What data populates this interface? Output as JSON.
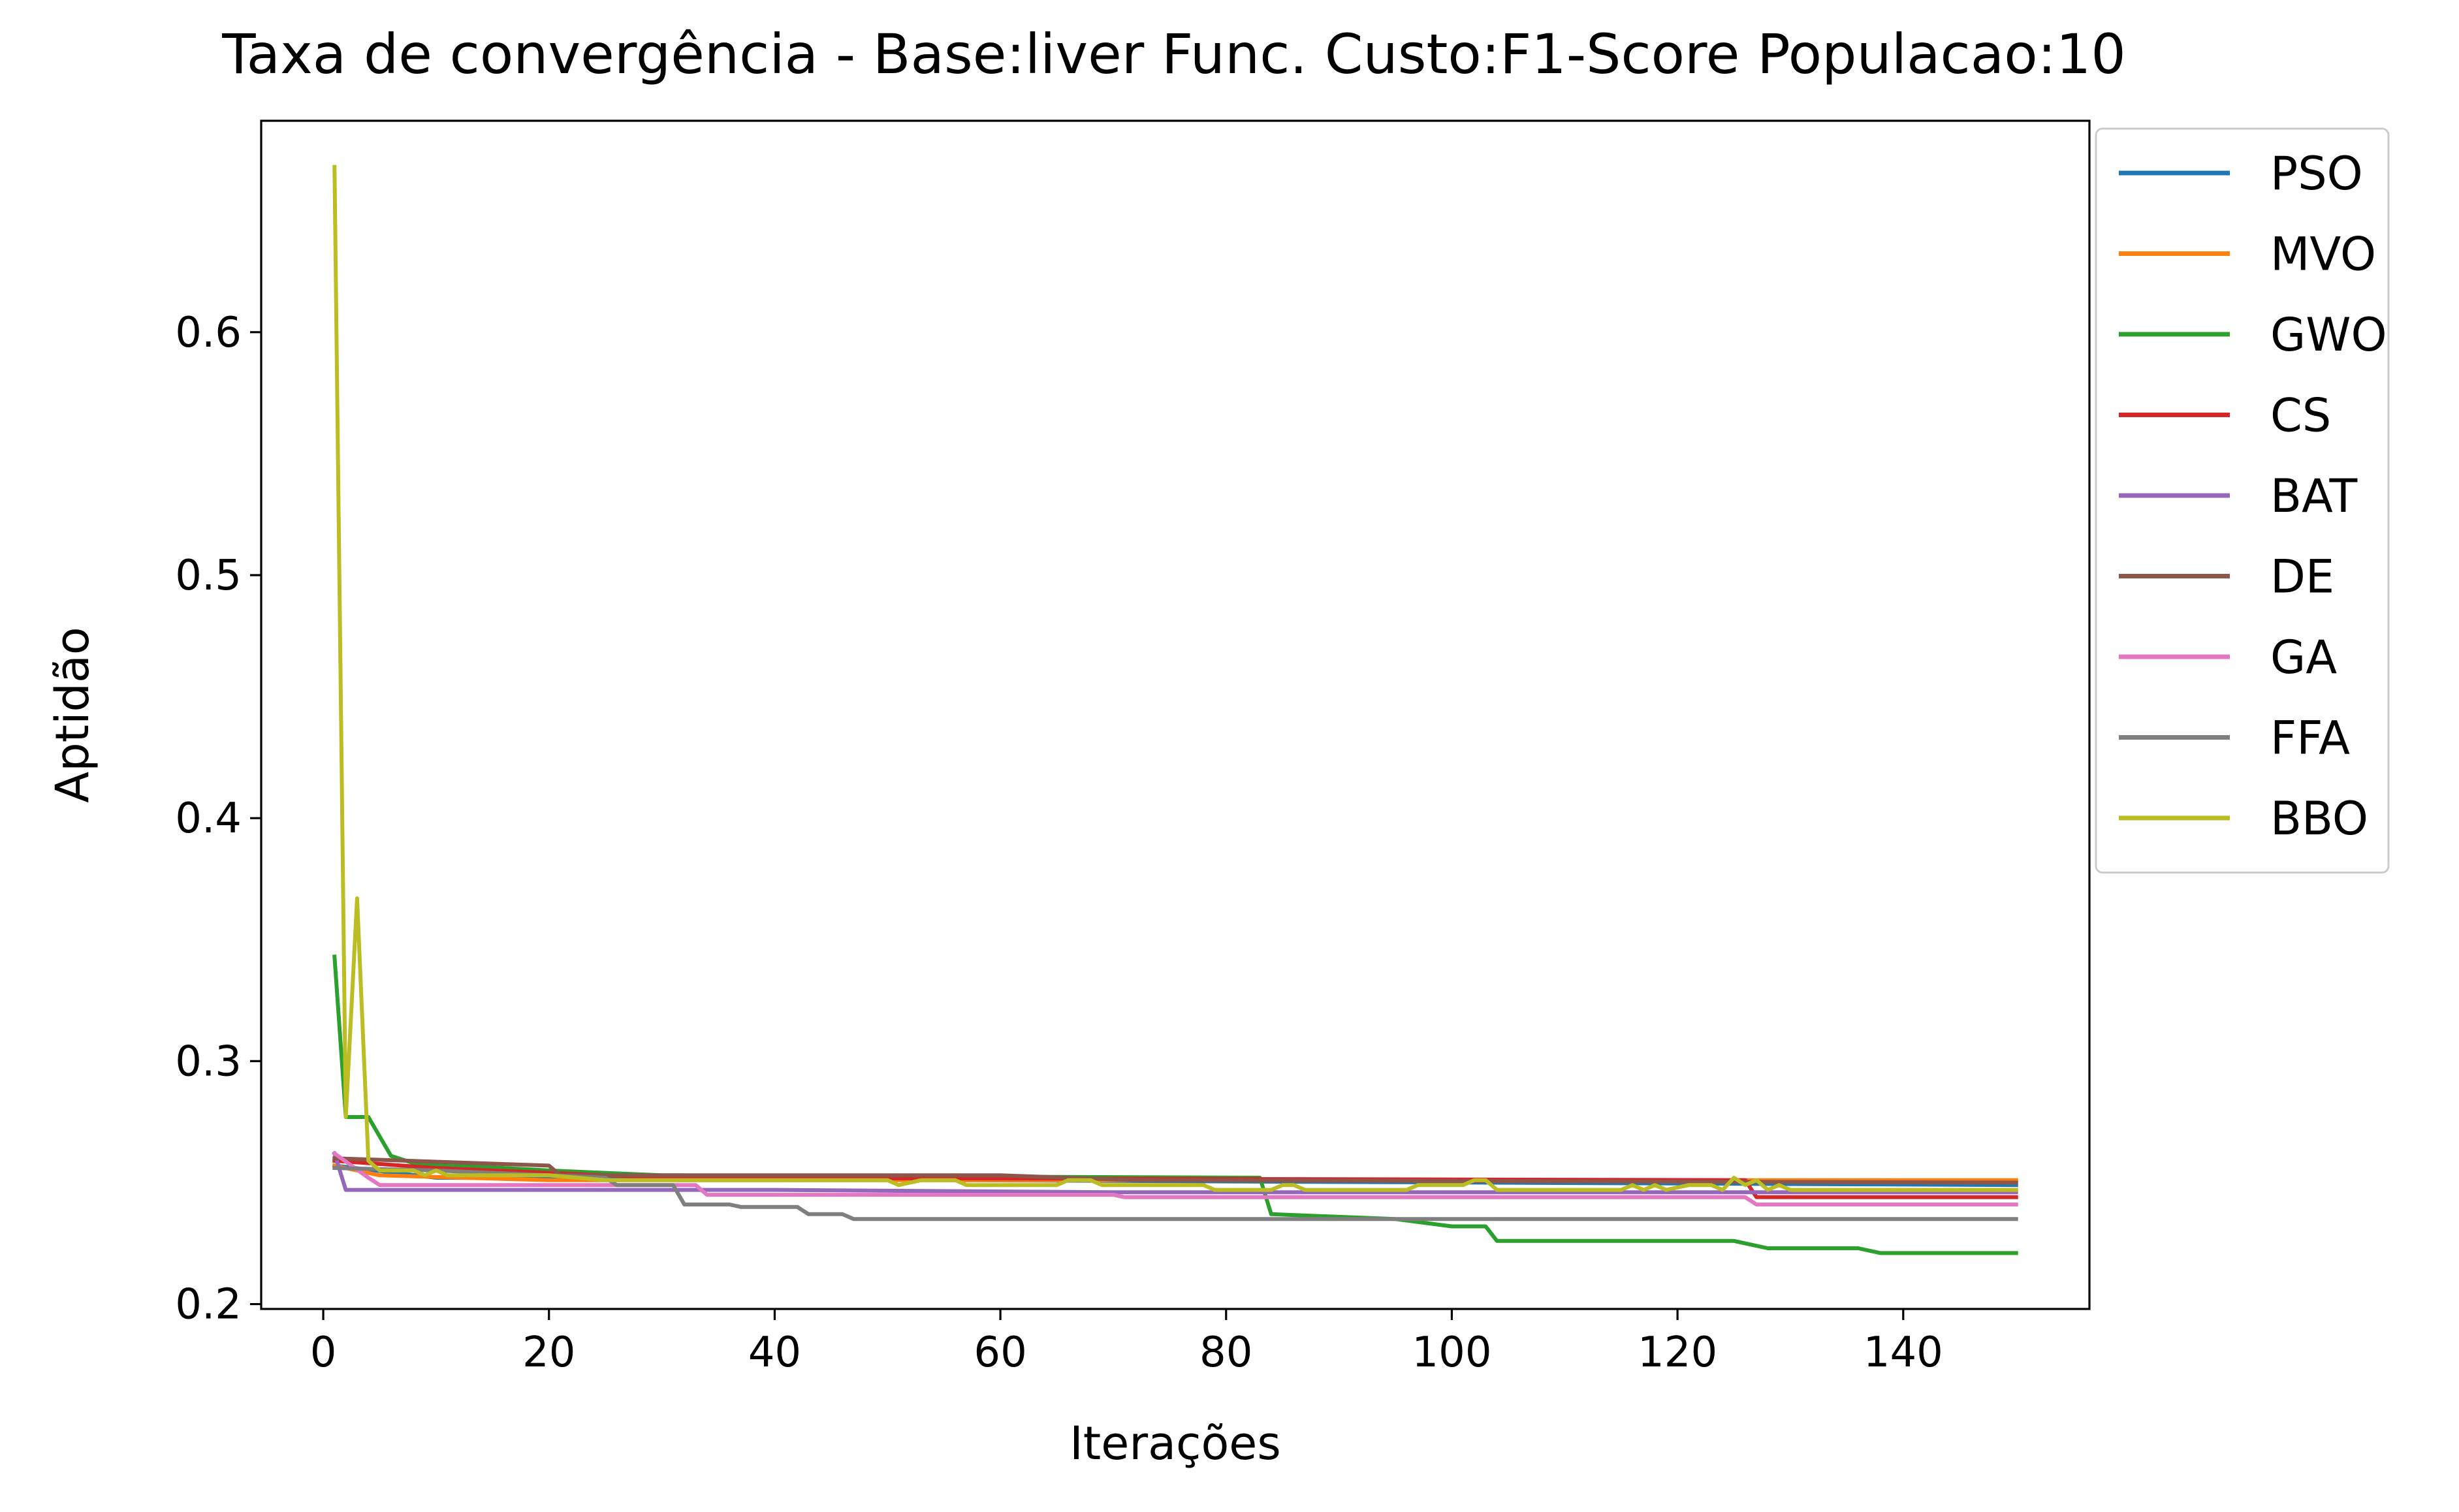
{
  "chart_data": {
    "type": "line",
    "title": "Taxa de convergência - Base:liver Func. Custo:F1-Score Populacao:10",
    "xlabel": "Iterações",
    "ylabel": "Aptidão",
    "xlim": [
      -5.5,
      156.5
    ],
    "ylim": [
      0.198,
      0.687
    ],
    "xticks": [
      0,
      20,
      40,
      60,
      80,
      100,
      120,
      140
    ],
    "yticks": [
      0.2,
      0.3,
      0.4,
      0.5,
      0.6
    ],
    "ytick_labels": [
      "0.2",
      "0.3",
      "0.4",
      "0.5",
      "0.6"
    ],
    "grid": false,
    "legend_position": "outside upper right",
    "series": [
      {
        "name": "PSO",
        "color": "#1f77b4",
        "points": [
          [
            1,
            0.257
          ],
          [
            10,
            0.252
          ],
          [
            150,
            0.249
          ]
        ]
      },
      {
        "name": "MVO",
        "color": "#ff7f0e",
        "points": [
          [
            1,
            0.257
          ],
          [
            5,
            0.253
          ],
          [
            20,
            0.251
          ],
          [
            150,
            0.251
          ]
        ]
      },
      {
        "name": "GWO",
        "color": "#2ca02c",
        "points": [
          [
            1,
            0.343
          ],
          [
            2,
            0.277
          ],
          [
            4,
            0.277
          ],
          [
            6,
            0.261
          ],
          [
            8,
            0.258
          ],
          [
            20,
            0.255
          ],
          [
            30,
            0.253
          ],
          [
            83,
            0.252
          ],
          [
            84,
            0.237
          ],
          [
            95,
            0.235
          ],
          [
            100,
            0.232
          ],
          [
            103,
            0.232
          ],
          [
            104,
            0.226
          ],
          [
            125,
            0.226
          ],
          [
            128,
            0.223
          ],
          [
            136,
            0.223
          ],
          [
            138,
            0.221
          ],
          [
            150,
            0.221
          ]
        ]
      },
      {
        "name": "CS",
        "color": "#d62728",
        "points": [
          [
            1,
            0.259
          ],
          [
            10,
            0.256
          ],
          [
            30,
            0.252
          ],
          [
            126,
            0.251
          ],
          [
            127,
            0.244
          ],
          [
            150,
            0.244
          ]
        ]
      },
      {
        "name": "BAT",
        "color": "#9467bd",
        "points": [
          [
            1,
            0.262
          ],
          [
            2,
            0.247
          ],
          [
            40,
            0.247
          ],
          [
            70,
            0.246
          ],
          [
            150,
            0.246
          ]
        ]
      },
      {
        "name": "DE",
        "color": "#8c564b",
        "points": [
          [
            1,
            0.26
          ],
          [
            20,
            0.257
          ],
          [
            21,
            0.253
          ],
          [
            60,
            0.253
          ],
          [
            72,
            0.251
          ],
          [
            150,
            0.25
          ]
        ]
      },
      {
        "name": "GA",
        "color": "#e377c2",
        "points": [
          [
            1,
            0.262
          ],
          [
            4,
            0.252
          ],
          [
            5,
            0.249
          ],
          [
            33,
            0.249
          ],
          [
            34,
            0.245
          ],
          [
            70,
            0.245
          ],
          [
            71,
            0.244
          ],
          [
            126,
            0.244
          ],
          [
            127,
            0.241
          ],
          [
            150,
            0.241
          ]
        ]
      },
      {
        "name": "FFA",
        "color": "#7f7f7f",
        "points": [
          [
            1,
            0.256
          ],
          [
            10,
            0.255
          ],
          [
            25,
            0.252
          ],
          [
            26,
            0.249
          ],
          [
            31,
            0.249
          ],
          [
            32,
            0.241
          ],
          [
            36,
            0.241
          ],
          [
            37,
            0.24
          ],
          [
            42,
            0.24
          ],
          [
            43,
            0.237
          ],
          [
            46,
            0.237
          ],
          [
            47,
            0.235
          ],
          [
            150,
            0.235
          ]
        ]
      },
      {
        "name": "BBO",
        "color": "#bcbd22",
        "points": [
          [
            1,
            0.668
          ],
          [
            2,
            0.277
          ],
          [
            3,
            0.367
          ],
          [
            4,
            0.259
          ],
          [
            5,
            0.255
          ],
          [
            8,
            0.255
          ],
          [
            9,
            0.253
          ],
          [
            10,
            0.255
          ],
          [
            11,
            0.253
          ],
          [
            20,
            0.253
          ],
          [
            25,
            0.251
          ],
          [
            50,
            0.251
          ],
          [
            51,
            0.249
          ],
          [
            53,
            0.251
          ],
          [
            56,
            0.251
          ],
          [
            57,
            0.249
          ],
          [
            65,
            0.249
          ],
          [
            66,
            0.251
          ],
          [
            68,
            0.251
          ],
          [
            69,
            0.249
          ],
          [
            78,
            0.249
          ],
          [
            79,
            0.247
          ],
          [
            84,
            0.247
          ],
          [
            85,
            0.249
          ],
          [
            86,
            0.249
          ],
          [
            87,
            0.247
          ],
          [
            96,
            0.247
          ],
          [
            97,
            0.249
          ],
          [
            101,
            0.249
          ],
          [
            102,
            0.251
          ],
          [
            103,
            0.251
          ],
          [
            104,
            0.247
          ],
          [
            115,
            0.247
          ],
          [
            116,
            0.249
          ],
          [
            117,
            0.247
          ],
          [
            118,
            0.249
          ],
          [
            119,
            0.247
          ],
          [
            121,
            0.249
          ],
          [
            123,
            0.249
          ],
          [
            124,
            0.247
          ],
          [
            125,
            0.252
          ],
          [
            126,
            0.249
          ],
          [
            127,
            0.251
          ],
          [
            128,
            0.247
          ],
          [
            129,
            0.249
          ],
          [
            130,
            0.247
          ],
          [
            150,
            0.247
          ]
        ]
      }
    ]
  }
}
